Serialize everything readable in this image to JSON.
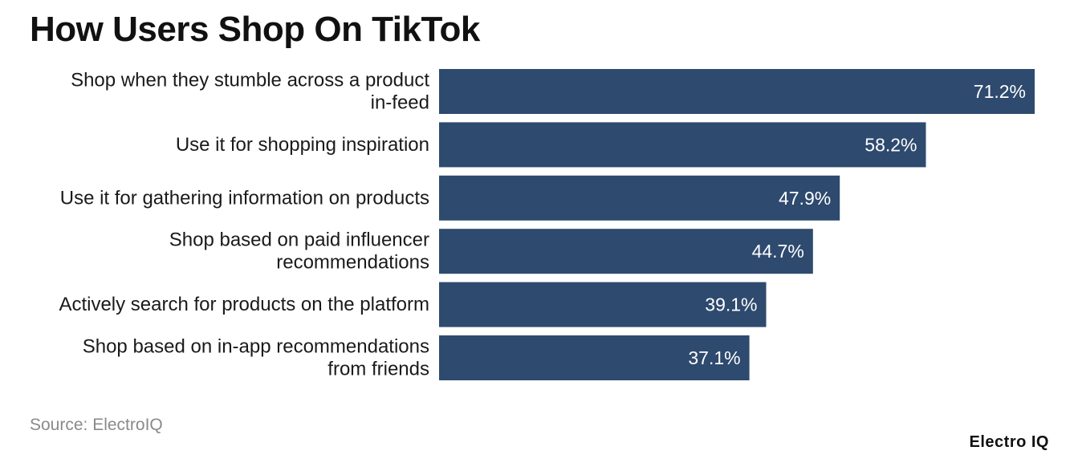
{
  "page": {
    "title": "How Users Shop On TikTok",
    "source": "Source: ElectroIQ",
    "brand": "Electro IQ"
  },
  "colors": {
    "bar": "#2e4a6e",
    "value_text": "#ffffff",
    "label_text": "#1a1a1a"
  },
  "chart_data": {
    "type": "bar",
    "orientation": "horizontal",
    "title": "How Users Shop On TikTok",
    "xlabel": "",
    "ylabel": "",
    "xlim": [
      0,
      71.2
    ],
    "grid": false,
    "legend": "none",
    "categories": [
      [
        "Shop when they stumble across a product",
        "in-feed"
      ],
      [
        "Use it for shopping inspiration"
      ],
      [
        "Use it for gathering information on products"
      ],
      [
        "Shop based on paid influencer",
        "recommendations"
      ],
      [
        "Actively search for products on the platform"
      ],
      [
        "Shop based on in-app recommendations",
        "from friends"
      ]
    ],
    "values": [
      71.2,
      58.2,
      47.9,
      44.7,
      39.1,
      37.1
    ],
    "value_labels": [
      "71.2%",
      "58.2%",
      "47.9%",
      "44.7%",
      "39.1%",
      "37.1%"
    ]
  }
}
